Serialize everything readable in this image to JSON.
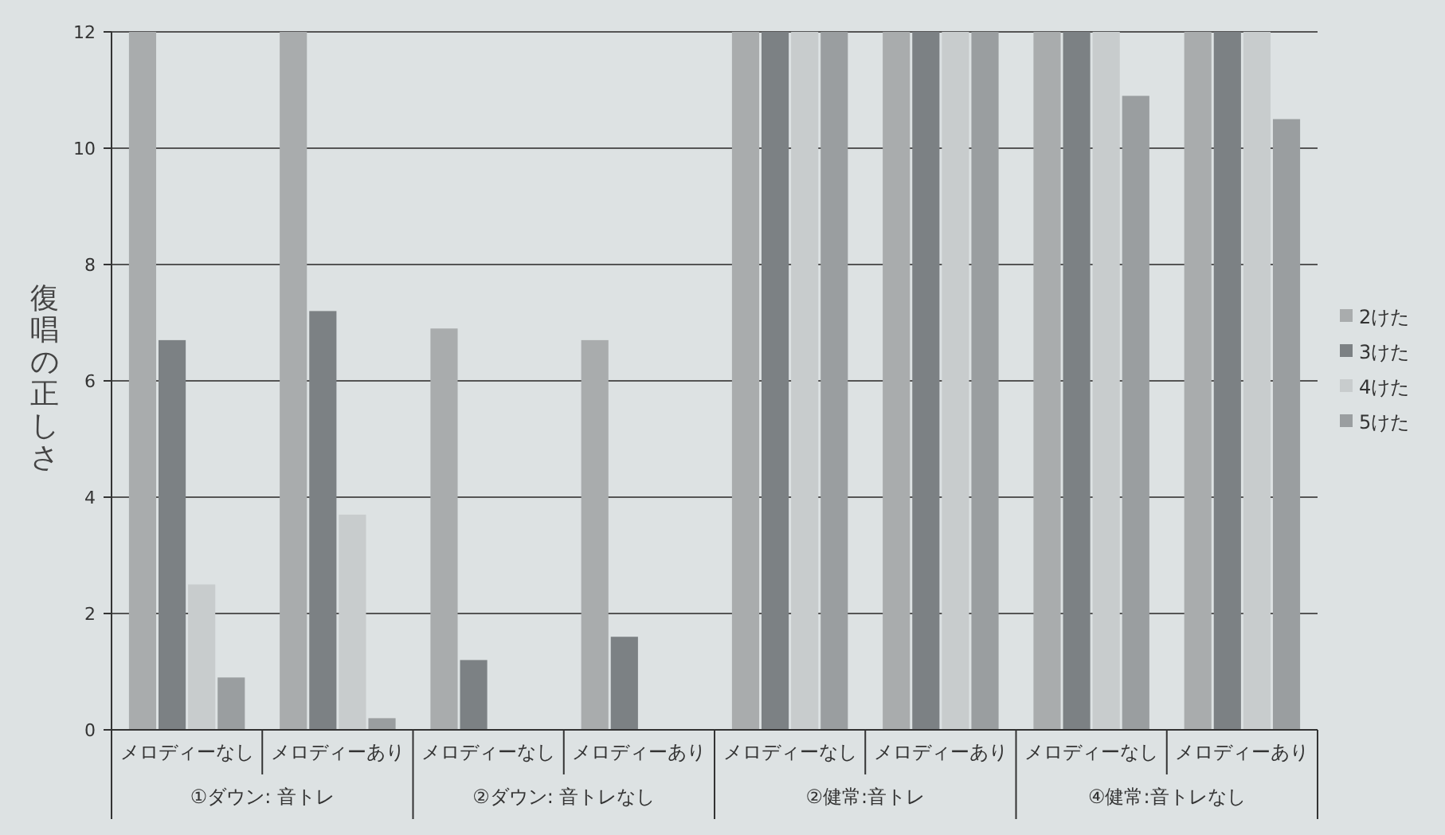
{
  "chart_data": {
    "type": "bar",
    "ylabel": "復唱の正しさ",
    "categories": [
      "メロディーなし",
      "メロディーあり",
      "メロディーなし",
      "メロディーあり",
      "メロディーなし",
      "メロディーあり",
      "メロディーなし",
      "メロディーあり"
    ],
    "annotations": [
      "①ダウン: 音トレ",
      "②ダウン: 音トレなし",
      "②健常:音トレ",
      "④健常:音トレなし"
    ],
    "series": [
      {
        "name": "2けた",
        "color": "#a9acad",
        "values": [
          12,
          12,
          6.9,
          6.7,
          12,
          12,
          12,
          12
        ]
      },
      {
        "name": "3けた",
        "color": "#7c8184",
        "values": [
          6.7,
          7.2,
          1.2,
          1.6,
          12,
          12,
          12,
          12
        ]
      },
      {
        "name": "4けた",
        "color": "#c8cccd",
        "values": [
          2.5,
          3.7,
          0,
          0,
          12,
          12,
          12,
          12
        ]
      },
      {
        "name": "5けた",
        "color": "#9a9ea0",
        "values": [
          0.9,
          0.2,
          0,
          0,
          12,
          12,
          10.9,
          10.5
        ]
      }
    ],
    "ylim": [
      0,
      12
    ],
    "yticks": [
      0,
      2,
      4,
      6,
      8,
      10,
      12
    ],
    "grid": "y",
    "legend": "right"
  }
}
